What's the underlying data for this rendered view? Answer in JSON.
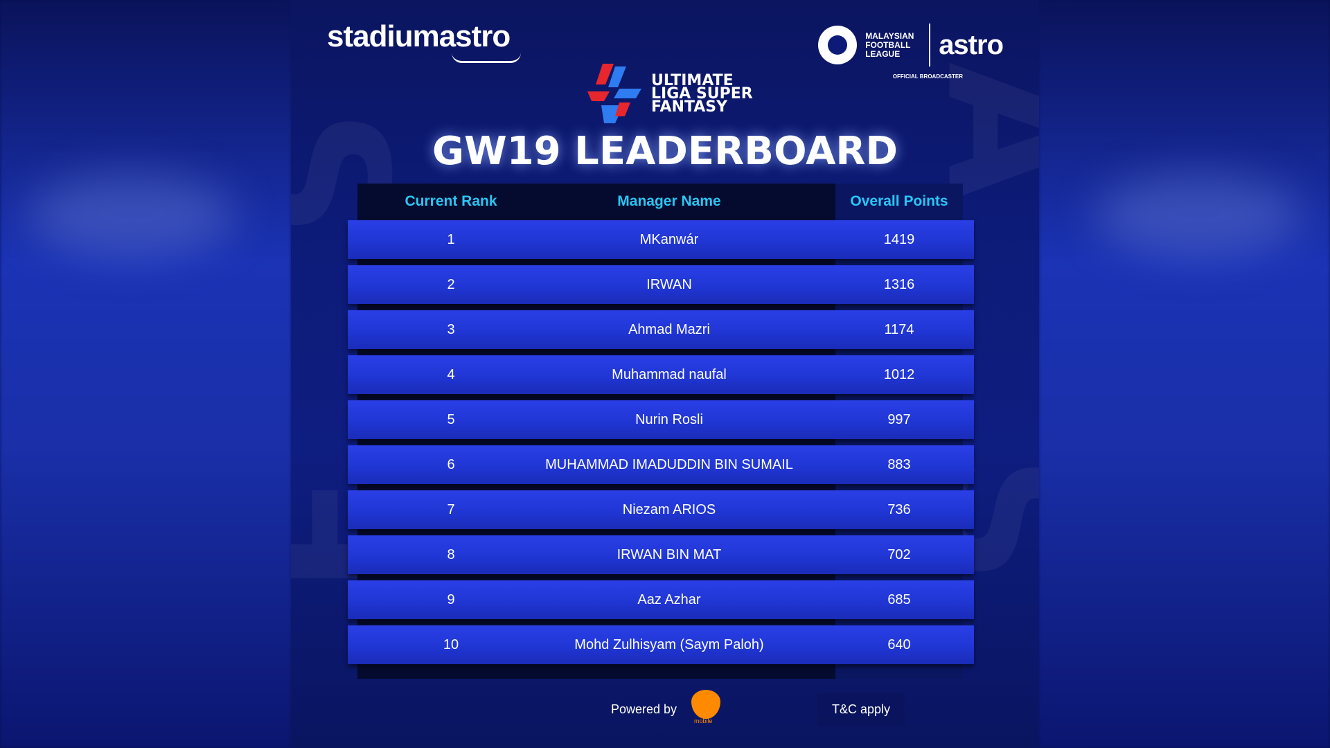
{
  "branding": {
    "stadium_astro": "stadiumastro",
    "mfl_lines": [
      "MALAYSIAN",
      "FOOTBALL",
      "LEAGUE"
    ],
    "astro": "astro",
    "official_broadcaster": "OFFICIAL BROADCASTER",
    "uls_lines": [
      "ULTIMATE",
      "LIGA SUPER",
      "FANTASY"
    ]
  },
  "title": "GW19 LEADERBOARD",
  "table": {
    "headers": {
      "rank": "Current Rank",
      "name": "Manager Name",
      "points": "Overall Points"
    },
    "rows": [
      {
        "rank": "1",
        "name": "MKanwár",
        "points": "1419"
      },
      {
        "rank": "2",
        "name": "IRWAN",
        "points": "1316"
      },
      {
        "rank": "3",
        "name": "Ahmad Mazri",
        "points": "1174"
      },
      {
        "rank": "4",
        "name": "Muhammad naufal",
        "points": "1012"
      },
      {
        "rank": "5",
        "name": "Nurin Rosli",
        "points": "997"
      },
      {
        "rank": "6",
        "name": "MUHAMMAD IMADUDDIN BIN SUMAIL",
        "points": "883"
      },
      {
        "rank": "7",
        "name": "Niezam ARIOS",
        "points": "736"
      },
      {
        "rank": "8",
        "name": "IRWAN BIN MAT",
        "points": "702"
      },
      {
        "rank": "9",
        "name": "Aaz Azhar",
        "points": "685"
      },
      {
        "rank": "10",
        "name": "Mohd Zulhisyam (Saym Paloh)",
        "points": "640"
      }
    ]
  },
  "footer": {
    "powered_by": "Powered by",
    "umobile_label": "mobile",
    "tc": "T&C apply"
  },
  "colors": {
    "header_text": "#2ac6f4",
    "row_blue": "#2036d4",
    "accent_orange": "#ff8a00"
  }
}
